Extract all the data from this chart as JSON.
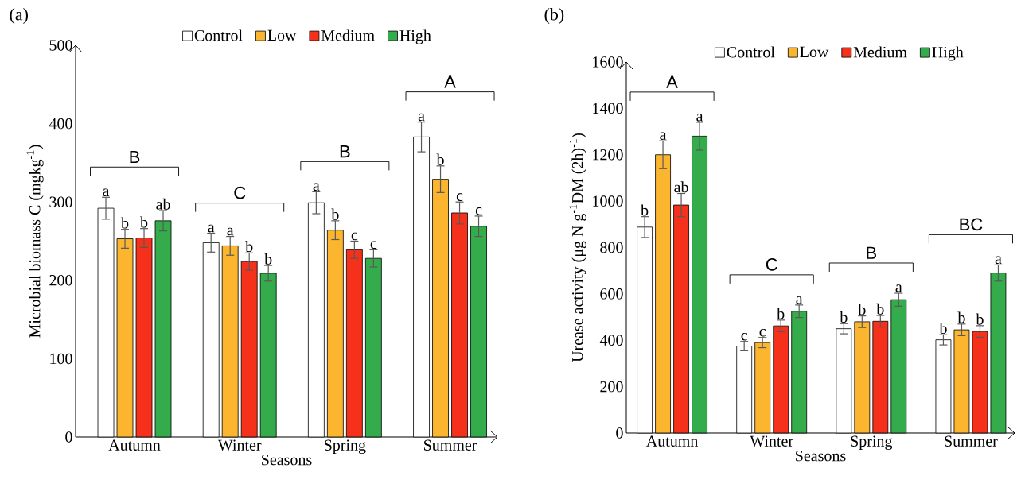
{
  "chart_data": [
    {
      "type": "bar",
      "title": "(a)",
      "xlabel": "Seasons",
      "ylabel": "Microbial biomass C (mgkg$^{-1}$)",
      "categories": [
        "Autumn",
        "Winter",
        "Spring",
        "Summer"
      ],
      "ylim": [
        0,
        500
      ],
      "yticks": [
        0,
        100,
        200,
        300,
        400,
        500
      ],
      "legend": "top",
      "series": [
        {
          "name": "Control",
          "color": "#ffffff",
          "values": [
            292,
            248,
            299,
            383
          ],
          "errors": [
            14,
            12,
            14,
            19
          ],
          "value_labels": [
            "a",
            "a",
            "a",
            "a"
          ]
        },
        {
          "name": "Low",
          "color": "#fbb52f",
          "values": [
            253,
            244,
            264,
            329
          ],
          "errors": [
            12,
            12,
            12,
            17
          ],
          "value_labels": [
            "b",
            "a",
            "b",
            "b"
          ]
        },
        {
          "name": "Medium",
          "color": "#f5301b",
          "values": [
            254,
            224,
            239,
            286
          ],
          "errors": [
            12,
            11,
            11,
            14
          ],
          "value_labels": [
            "b",
            "b",
            "c",
            "c"
          ]
        },
        {
          "name": "High",
          "color": "#35ac4c",
          "values": [
            276,
            209,
            228,
            269
          ],
          "errors": [
            13,
            10,
            11,
            13
          ],
          "value_labels": [
            "ab",
            "b",
            "c",
            "c"
          ]
        }
      ],
      "annotations": [
        "B",
        "C",
        "B",
        "A"
      ]
    },
    {
      "type": "bar",
      "title": "(b)",
      "xlabel": "Seasons",
      "ylabel": "Urease activity (μg N g$^{-1}$DM (2h)$^{-1}$)",
      "categories": [
        "Autumn",
        "Winter",
        "Spring",
        "Summer"
      ],
      "ylim": [
        0,
        1600
      ],
      "yticks": [
        0,
        200,
        400,
        600,
        800,
        1000,
        1200,
        1400,
        1600
      ],
      "legend": "top",
      "series": [
        {
          "name": "Control",
          "color": "#ffffff",
          "values": [
            888,
            375,
            450,
            402
          ],
          "errors": [
            45,
            20,
            22,
            22
          ],
          "value_labels": [
            "b",
            "c",
            "b",
            "b"
          ]
        },
        {
          "name": "Low",
          "color": "#fbb52f",
          "values": [
            1200,
            390,
            480,
            445
          ],
          "errors": [
            60,
            22,
            25,
            25
          ],
          "value_labels": [
            "a",
            "c",
            "b",
            "b"
          ]
        },
        {
          "name": "Medium",
          "color": "#f5301b",
          "values": [
            983,
            462,
            482,
            438
          ],
          "errors": [
            50,
            25,
            25,
            25
          ],
          "value_labels": [
            "ab",
            "b",
            "b",
            "b"
          ]
        },
        {
          "name": "High",
          "color": "#35ac4c",
          "values": [
            1280,
            525,
            575,
            690
          ],
          "errors": [
            60,
            27,
            28,
            35
          ],
          "value_labels": [
            "a",
            "a",
            "a",
            "a"
          ]
        }
      ],
      "annotations": [
        "A",
        "C",
        "B",
        "BC"
      ]
    }
  ]
}
